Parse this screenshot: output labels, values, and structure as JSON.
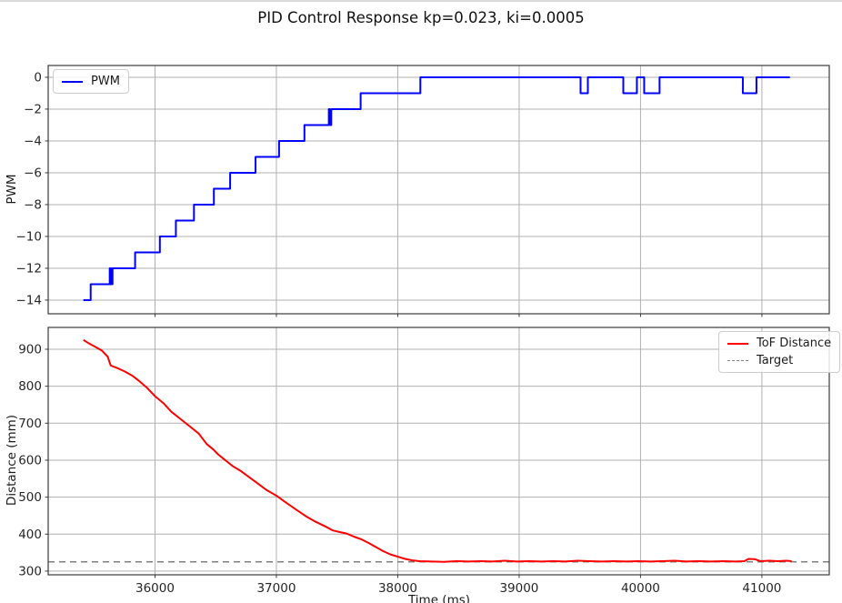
{
  "title": "PID Control Response kp=0.023, ki=0.0005",
  "chart_data": [
    {
      "type": "line",
      "subplot": "top",
      "ylabel": "PWM",
      "xlim": [
        35120,
        41555
      ],
      "ylim": [
        -14.86,
        0.74
      ],
      "grid": true,
      "xticks": [
        36000,
        37000,
        38000,
        39000,
        40000,
        41000
      ],
      "xtick_labels": [],
      "yticks": [
        0,
        -2,
        -4,
        -6,
        -8,
        -10,
        -12,
        -14
      ],
      "ytick_labels": [
        "0",
        "−2",
        "−4",
        "−6",
        "−8",
        "−10",
        "−12",
        "−14"
      ],
      "legend": {
        "position": "upper left",
        "entries": [
          {
            "label": "PWM",
            "color": "#0000ff",
            "style": "solid"
          }
        ]
      },
      "series": [
        {
          "name": "PWM",
          "color": "#0000ff",
          "drawstyle": "steps-post",
          "end_time": 41230,
          "points": [
            [
              35410,
              -14
            ],
            [
              35470,
              -13
            ],
            [
              35627,
              -12
            ],
            [
              35638,
              -13
            ],
            [
              35650,
              -12
            ],
            [
              35836,
              -11
            ],
            [
              36040,
              -10
            ],
            [
              36172,
              -9
            ],
            [
              36321,
              -8
            ],
            [
              36485,
              -7
            ],
            [
              36619,
              -6
            ],
            [
              36828,
              -5
            ],
            [
              37022,
              -4
            ],
            [
              37231,
              -3
            ],
            [
              37432,
              -2
            ],
            [
              37440,
              -3
            ],
            [
              37452,
              -2
            ],
            [
              37694,
              -1
            ],
            [
              38186,
              0
            ],
            [
              39506,
              -1
            ],
            [
              39566,
              0
            ],
            [
              39858,
              -1
            ],
            [
              39970,
              0
            ],
            [
              40030,
              -1
            ],
            [
              40157,
              0
            ],
            [
              40843,
              -1
            ],
            [
              40955,
              0
            ]
          ]
        }
      ]
    },
    {
      "type": "line",
      "subplot": "bottom",
      "ylabel": "Distance (mm)",
      "xlabel": "Time (ms)",
      "xlim": [
        35120,
        41555
      ],
      "ylim": [
        290,
        959
      ],
      "grid": true,
      "xticks": [
        36000,
        37000,
        38000,
        39000,
        40000,
        41000
      ],
      "xtick_labels": [
        "36000",
        "37000",
        "38000",
        "39000",
        "40000",
        "41000"
      ],
      "yticks": [
        900,
        800,
        700,
        600,
        500,
        400,
        300
      ],
      "ytick_labels": [
        "900",
        "800",
        "700",
        "600",
        "500",
        "400",
        "300"
      ],
      "legend": {
        "position": "upper right",
        "entries": [
          {
            "label": "ToF Distance",
            "color": "#ff0000",
            "style": "solid"
          },
          {
            "label": "Target",
            "color": "#808080",
            "style": "dashed"
          }
        ]
      },
      "series": [
        {
          "name": "Target",
          "color": "#808080",
          "style": "dashed",
          "hline": 325
        },
        {
          "name": "ToF Distance",
          "color": "#ff0000",
          "points": [
            [
              35410,
              925
            ],
            [
              35450,
              917
            ],
            [
              35500,
              908
            ],
            [
              35560,
              897
            ],
            [
              35610,
              880
            ],
            [
              35635,
              856
            ],
            [
              35690,
              849
            ],
            [
              35750,
              840
            ],
            [
              35810,
              829
            ],
            [
              35870,
              814
            ],
            [
              35930,
              797
            ],
            [
              36000,
              773
            ],
            [
              36070,
              754
            ],
            [
              36134,
              731
            ],
            [
              36200,
              714
            ],
            [
              36280,
              693
            ],
            [
              36360,
              672
            ],
            [
              36425,
              644
            ],
            [
              36480,
              629
            ],
            [
              36522,
              615
            ],
            [
              36575,
              601
            ],
            [
              36640,
              584
            ],
            [
              36710,
              570
            ],
            [
              36780,
              553
            ],
            [
              36850,
              536
            ],
            [
              36920,
              519
            ],
            [
              37000,
              504
            ],
            [
              37080,
              485
            ],
            [
              37160,
              467
            ],
            [
              37240,
              449
            ],
            [
              37320,
              434
            ],
            [
              37420,
              418
            ],
            [
              37465,
              410
            ],
            [
              37530,
              405
            ],
            [
              37575,
              402
            ],
            [
              37640,
              393
            ],
            [
              37700,
              386
            ],
            [
              37760,
              376
            ],
            [
              37820,
              365
            ],
            [
              37880,
              354
            ],
            [
              37940,
              345
            ],
            [
              38000,
              339
            ],
            [
              38060,
              333
            ],
            [
              38120,
              329
            ],
            [
              38180,
              327
            ],
            [
              38280,
              326
            ],
            [
              38380,
              325
            ],
            [
              38480,
              327
            ],
            [
              38580,
              326
            ],
            [
              38680,
              327
            ],
            [
              38780,
              326
            ],
            [
              38880,
              328
            ],
            [
              38980,
              326
            ],
            [
              39080,
              327
            ],
            [
              39180,
              326
            ],
            [
              39280,
              327
            ],
            [
              39380,
              326
            ],
            [
              39480,
              328
            ],
            [
              39580,
              327
            ],
            [
              39680,
              326
            ],
            [
              39780,
              327
            ],
            [
              39880,
              326
            ],
            [
              39980,
              327
            ],
            [
              40080,
              326
            ],
            [
              40180,
              327
            ],
            [
              40280,
              328
            ],
            [
              40380,
              326
            ],
            [
              40480,
              327
            ],
            [
              40580,
              326
            ],
            [
              40680,
              327
            ],
            [
              40780,
              326
            ],
            [
              40855,
              327
            ],
            [
              40890,
              333
            ],
            [
              40945,
              332
            ],
            [
              40985,
              327
            ],
            [
              41060,
              328
            ],
            [
              41130,
              327
            ],
            [
              41200,
              328
            ],
            [
              41245,
              327
            ]
          ]
        }
      ]
    }
  ],
  "style": {
    "grid_color": "#b0b0b0",
    "spine_color": "#3a3a3a",
    "tick_label_color": "#262626",
    "pwm_color": "#0000ff",
    "tof_color": "#ff0000",
    "target_color": "#808080"
  }
}
